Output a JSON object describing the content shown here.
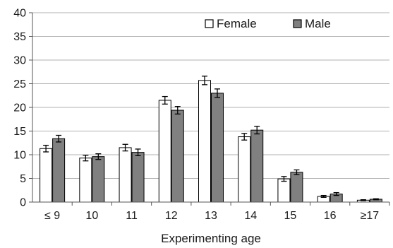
{
  "chart_data": {
    "type": "bar",
    "title": "",
    "xlabel": "Experimenting age",
    "ylabel": "",
    "categories": [
      "≤ 9",
      "10",
      "11",
      "12",
      "13",
      "14",
      "15",
      "16",
      "≥17"
    ],
    "ylim": [
      0,
      40
    ],
    "yticks": [
      0,
      5,
      10,
      15,
      20,
      25,
      30,
      35,
      40
    ],
    "grid": true,
    "legend_position": "top-right",
    "error_bars": true,
    "series": [
      {
        "name": "Female",
        "color": "#ffffff",
        "values": [
          11.3,
          9.3,
          11.5,
          21.5,
          25.7,
          13.8,
          4.9,
          1.2,
          0.4
        ],
        "errors": [
          0.7,
          0.6,
          0.7,
          0.8,
          0.9,
          0.7,
          0.5,
          0.2,
          0.1
        ]
      },
      {
        "name": "Male",
        "color": "#808080",
        "values": [
          13.4,
          9.6,
          10.5,
          19.4,
          23.0,
          15.2,
          6.3,
          1.7,
          0.6
        ],
        "errors": [
          0.7,
          0.6,
          0.7,
          0.8,
          0.9,
          0.8,
          0.5,
          0.3,
          0.1
        ]
      }
    ]
  }
}
